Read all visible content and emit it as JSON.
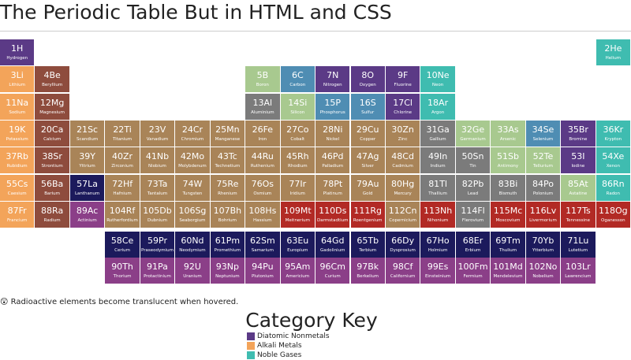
{
  "header": {
    "title": "The Periodic Table But in HTML and CSS"
  },
  "elements": [
    {
      "number": 1,
      "symbol": "H",
      "name": "Hydrogen",
      "color": "#5b3a86"
    },
    {
      "number": 2,
      "symbol": "He",
      "name": "Helium",
      "color": "#3fbcb0"
    },
    {
      "number": 3,
      "symbol": "Li",
      "name": "Lithium",
      "color": "#f3a45a"
    },
    {
      "number": 4,
      "symbol": "Be",
      "name": "Beryllium",
      "color": "#8e4c3d"
    },
    {
      "number": 5,
      "symbol": "B",
      "name": "Boron",
      "color": "#a8c98f"
    },
    {
      "number": 6,
      "symbol": "C",
      "name": "Carbon",
      "color": "#4f8db3"
    },
    {
      "number": 7,
      "symbol": "N",
      "name": "Nitrogen",
      "color": "#5b3a86"
    },
    {
      "number": 8,
      "symbol": "O",
      "name": "Oxygen",
      "color": "#5b3a86"
    },
    {
      "number": 9,
      "symbol": "F",
      "name": "Fluorine",
      "color": "#5b3a86"
    },
    {
      "number": 10,
      "symbol": "Ne",
      "name": "Neon",
      "color": "#3fbcb0"
    },
    {
      "number": 11,
      "symbol": "Na",
      "name": "Sodium",
      "color": "#f3a45a"
    },
    {
      "number": 12,
      "symbol": "Mg",
      "name": "Magnesium",
      "color": "#8e4c3d"
    },
    {
      "number": 13,
      "symbol": "Al",
      "name": "Aluminium",
      "color": "#7b7b7b"
    },
    {
      "number": 14,
      "symbol": "Si",
      "name": "Silicon",
      "color": "#a8c98f"
    },
    {
      "number": 15,
      "symbol": "P",
      "name": "Phosphorus",
      "color": "#4f8db3"
    },
    {
      "number": 16,
      "symbol": "S",
      "name": "Sulfur",
      "color": "#4f8db3"
    },
    {
      "number": 17,
      "symbol": "Cl",
      "name": "Chlorine",
      "color": "#5b3a86"
    },
    {
      "number": 18,
      "symbol": "Ar",
      "name": "Argon",
      "color": "#3fbcb0"
    },
    {
      "number": 19,
      "symbol": "K",
      "name": "Potassium",
      "color": "#f3a45a"
    },
    {
      "number": 20,
      "symbol": "Ca",
      "name": "Calcium",
      "color": "#8e4c3d"
    },
    {
      "number": 21,
      "symbol": "Sc",
      "name": "Scandium",
      "color": "#a98458"
    },
    {
      "number": 22,
      "symbol": "Ti",
      "name": "Titanium",
      "color": "#a98458"
    },
    {
      "number": 23,
      "symbol": "V",
      "name": "Vanadium",
      "color": "#a98458"
    },
    {
      "number": 24,
      "symbol": "Cr",
      "name": "Chromium",
      "color": "#a98458"
    },
    {
      "number": 25,
      "symbol": "Mn",
      "name": "Manganese",
      "color": "#a98458"
    },
    {
      "number": 26,
      "symbol": "Fe",
      "name": "Iron",
      "color": "#a98458"
    },
    {
      "number": 27,
      "symbol": "Co",
      "name": "Cobalt",
      "color": "#a98458"
    },
    {
      "number": 28,
      "symbol": "Ni",
      "name": "Nickel",
      "color": "#a98458"
    },
    {
      "number": 29,
      "symbol": "Cu",
      "name": "Copper",
      "color": "#a98458"
    },
    {
      "number": 30,
      "symbol": "Zn",
      "name": "Zinc",
      "color": "#a98458"
    },
    {
      "number": 31,
      "symbol": "Ga",
      "name": "Gallium",
      "color": "#7b7b7b"
    },
    {
      "number": 32,
      "symbol": "Ge",
      "name": "Germanium",
      "color": "#a8c98f"
    },
    {
      "number": 33,
      "symbol": "As",
      "name": "Arsenic",
      "color": "#a8c98f"
    },
    {
      "number": 34,
      "symbol": "Se",
      "name": "Selenium",
      "color": "#4f8db3"
    },
    {
      "number": 35,
      "symbol": "Br",
      "name": "Bromine",
      "color": "#5b3a86"
    },
    {
      "number": 36,
      "symbol": "Kr",
      "name": "Krypton",
      "color": "#3fbcb0"
    },
    {
      "number": 37,
      "symbol": "Rb",
      "name": "Rubidium",
      "color": "#f3a45a"
    },
    {
      "number": 38,
      "symbol": "Sr",
      "name": "Strontium",
      "color": "#8e4c3d"
    },
    {
      "number": 39,
      "symbol": "Y",
      "name": "Yttrium",
      "color": "#a98458"
    },
    {
      "number": 40,
      "symbol": "Zr",
      "name": "Zirconium",
      "color": "#a98458"
    },
    {
      "number": 41,
      "symbol": "Nb",
      "name": "Niobium",
      "color": "#a98458"
    },
    {
      "number": 42,
      "symbol": "Mo",
      "name": "Molybdenum",
      "color": "#a98458"
    },
    {
      "number": 43,
      "symbol": "Tc",
      "name": "Technetium",
      "color": "#a98458"
    },
    {
      "number": 44,
      "symbol": "Ru",
      "name": "Ruthenium",
      "color": "#a98458"
    },
    {
      "number": 45,
      "symbol": "Rh",
      "name": "Rhodium",
      "color": "#a98458"
    },
    {
      "number": 46,
      "symbol": "Pd",
      "name": "Palladium",
      "color": "#a98458"
    },
    {
      "number": 47,
      "symbol": "Ag",
      "name": "Silver",
      "color": "#a98458"
    },
    {
      "number": 48,
      "symbol": "Cd",
      "name": "Cadmium",
      "color": "#a98458"
    },
    {
      "number": 49,
      "symbol": "In",
      "name": "Indium",
      "color": "#7b7b7b"
    },
    {
      "number": 50,
      "symbol": "Sn",
      "name": "Tin",
      "color": "#7b7b7b"
    },
    {
      "number": 51,
      "symbol": "Sb",
      "name": "Antimony",
      "color": "#a8c98f"
    },
    {
      "number": 52,
      "symbol": "Te",
      "name": "Tellurium",
      "color": "#a8c98f"
    },
    {
      "number": 53,
      "symbol": "I",
      "name": "Iodine",
      "color": "#5b3a86"
    },
    {
      "number": 54,
      "symbol": "Xe",
      "name": "Xenon",
      "color": "#3fbcb0"
    },
    {
      "number": 55,
      "symbol": "Cs",
      "name": "Caesium",
      "color": "#f3a45a"
    },
    {
      "number": 56,
      "symbol": "Ba",
      "name": "Barium",
      "color": "#8e4c3d"
    },
    {
      "number": 57,
      "symbol": "La",
      "name": "Lanthanum",
      "color": "#1c1a5c"
    },
    {
      "number": 58,
      "symbol": "Ce",
      "name": "Cerium",
      "color": "#1c1a5c"
    },
    {
      "number": 59,
      "symbol": "Pr",
      "name": "Praseodymium",
      "color": "#1c1a5c"
    },
    {
      "number": 60,
      "symbol": "Nd",
      "name": "Neodymium",
      "color": "#1c1a5c"
    },
    {
      "number": 61,
      "symbol": "Pm",
      "name": "Promethium",
      "color": "#1c1a5c"
    },
    {
      "number": 62,
      "symbol": "Sm",
      "name": "Samarium",
      "color": "#1c1a5c"
    },
    {
      "number": 63,
      "symbol": "Eu",
      "name": "Europium",
      "color": "#1c1a5c"
    },
    {
      "number": 64,
      "symbol": "Gd",
      "name": "Gadolinium",
      "color": "#1c1a5c"
    },
    {
      "number": 65,
      "symbol": "Tb",
      "name": "Terbium",
      "color": "#1c1a5c"
    },
    {
      "number": 66,
      "symbol": "Dy",
      "name": "Dysprosium",
      "color": "#1c1a5c"
    },
    {
      "number": 67,
      "symbol": "Ho",
      "name": "Holmium",
      "color": "#1c1a5c"
    },
    {
      "number": 68,
      "symbol": "Er",
      "name": "Erbium",
      "color": "#1c1a5c"
    },
    {
      "number": 69,
      "symbol": "Tm",
      "name": "Thulium",
      "color": "#1c1a5c"
    },
    {
      "number": 70,
      "symbol": "Yb",
      "name": "Ytterbium",
      "color": "#1c1a5c"
    },
    {
      "number": 71,
      "symbol": "Lu",
      "name": "Lutetium",
      "color": "#1c1a5c"
    },
    {
      "number": 72,
      "symbol": "Hf",
      "name": "Hafnium",
      "color": "#a98458"
    },
    {
      "number": 73,
      "symbol": "Ta",
      "name": "Tantalum",
      "color": "#a98458"
    },
    {
      "number": 74,
      "symbol": "W",
      "name": "Tungsten",
      "color": "#a98458"
    },
    {
      "number": 75,
      "symbol": "Re",
      "name": "Rhenium",
      "color": "#a98458"
    },
    {
      "number": 76,
      "symbol": "Os",
      "name": "Osmium",
      "color": "#a98458"
    },
    {
      "number": 77,
      "symbol": "Ir",
      "name": "Iridium",
      "color": "#a98458"
    },
    {
      "number": 78,
      "symbol": "Pt",
      "name": "Platinum",
      "color": "#a98458"
    },
    {
      "number": 79,
      "symbol": "Au",
      "name": "Gold",
      "color": "#a98458"
    },
    {
      "number": 80,
      "symbol": "Hg",
      "name": "Mercury",
      "color": "#a98458"
    },
    {
      "number": 81,
      "symbol": "Tl",
      "name": "Thallium",
      "color": "#7b7b7b"
    },
    {
      "number": 82,
      "symbol": "Pb",
      "name": "Lead",
      "color": "#7b7b7b"
    },
    {
      "number": 83,
      "symbol": "Bi",
      "name": "Bismuth",
      "color": "#7b7b7b"
    },
    {
      "number": 84,
      "symbol": "Po",
      "name": "Polonium",
      "color": "#7b7b7b"
    },
    {
      "number": 85,
      "symbol": "At",
      "name": "Astatine",
      "color": "#a8c98f"
    },
    {
      "number": 86,
      "symbol": "Rn",
      "name": "Radon",
      "color": "#3fbcb0"
    },
    {
      "number": 87,
      "symbol": "Fr",
      "name": "Francium",
      "color": "#f3a45a"
    },
    {
      "number": 88,
      "symbol": "Ra",
      "name": "Radium",
      "color": "#8e4c3d"
    },
    {
      "number": 89,
      "symbol": "Ac",
      "name": "Actinium",
      "color": "#8b3f88"
    },
    {
      "number": 90,
      "symbol": "Th",
      "name": "Thorium",
      "color": "#8b3f88"
    },
    {
      "number": 91,
      "symbol": "Pa",
      "name": "Protactinium",
      "color": "#8b3f88"
    },
    {
      "number": 92,
      "symbol": "U",
      "name": "Uranium",
      "color": "#8b3f88"
    },
    {
      "number": 93,
      "symbol": "Np",
      "name": "Neptunium",
      "color": "#8b3f88"
    },
    {
      "number": 94,
      "symbol": "Pu",
      "name": "Plutonium",
      "color": "#8b3f88"
    },
    {
      "number": 95,
      "symbol": "Am",
      "name": "Americium",
      "color": "#8b3f88"
    },
    {
      "number": 96,
      "symbol": "Cm",
      "name": "Curium",
      "color": "#8b3f88"
    },
    {
      "number": 97,
      "symbol": "Bk",
      "name": "Berkelium",
      "color": "#8b3f88"
    },
    {
      "number": 98,
      "symbol": "Cf",
      "name": "Californium",
      "color": "#8b3f88"
    },
    {
      "number": 99,
      "symbol": "Es",
      "name": "Einsteinium",
      "color": "#8b3f88"
    },
    {
      "number": 100,
      "symbol": "Fm",
      "name": "Fermium",
      "color": "#8b3f88"
    },
    {
      "number": 101,
      "symbol": "Md",
      "name": "Mendelevium",
      "color": "#8b3f88"
    },
    {
      "number": 102,
      "symbol": "No",
      "name": "Nobelium",
      "color": "#8b3f88"
    },
    {
      "number": 103,
      "symbol": "Lr",
      "name": "Lawrencium",
      "color": "#8b3f88"
    },
    {
      "number": 104,
      "symbol": "Rf",
      "name": "Rutherfordium",
      "color": "#a98458"
    },
    {
      "number": 105,
      "symbol": "Db",
      "name": "Dubnium",
      "color": "#a98458"
    },
    {
      "number": 106,
      "symbol": "Sg",
      "name": "Seaborgium",
      "color": "#a98458"
    },
    {
      "number": 107,
      "symbol": "Bh",
      "name": "Bohrium",
      "color": "#a98458"
    },
    {
      "number": 108,
      "symbol": "Hs",
      "name": "Hassium",
      "color": "#a98458"
    },
    {
      "number": 109,
      "symbol": "Mt",
      "name": "Meitnerium",
      "color": "#b22a25"
    },
    {
      "number": 110,
      "symbol": "Ds",
      "name": "Darmstadtium",
      "color": "#b22a25"
    },
    {
      "number": 111,
      "symbol": "Rg",
      "name": "Roentgenium",
      "color": "#b22a25"
    },
    {
      "number": 112,
      "symbol": "Cn",
      "name": "Copernicium",
      "color": "#a98458"
    },
    {
      "number": 113,
      "symbol": "Nh",
      "name": "Nihonium",
      "color": "#b22a25"
    },
    {
      "number": 114,
      "symbol": "Fl",
      "name": "Flerovium",
      "color": "#7b7b7b"
    },
    {
      "number": 115,
      "symbol": "Mc",
      "name": "Moscovium",
      "color": "#b22a25"
    },
    {
      "number": 116,
      "symbol": "Lv",
      "name": "Livermorium",
      "color": "#b22a25"
    },
    {
      "number": 117,
      "symbol": "Ts",
      "name": "Tennessine",
      "color": "#b22a25"
    },
    {
      "number": 118,
      "symbol": "Og",
      "name": "Oganesson",
      "color": "#b22a25"
    }
  ],
  "note": "😲 Radioactive elements become translucent when hovered.",
  "key": {
    "title": "Category Key",
    "items": [
      {
        "label": "Diatomic Nonmetals",
        "color": "#5b3a86"
      },
      {
        "label": "Alkali Metals",
        "color": "#f3a45a"
      },
      {
        "label": "Noble Gases",
        "color": "#3fbcb0"
      }
    ]
  }
}
